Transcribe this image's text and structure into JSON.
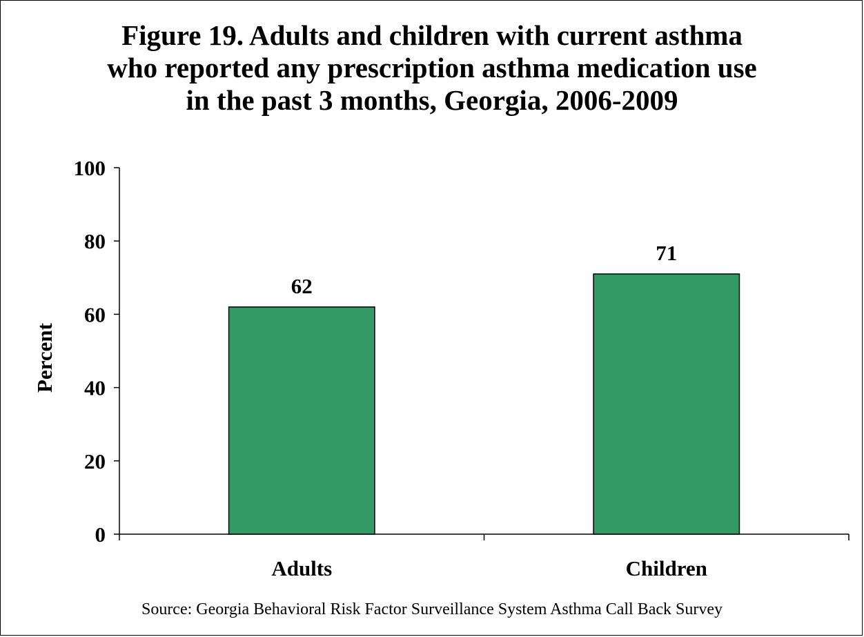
{
  "title_lines": [
    "Figure 19. Adults and children with current asthma",
    "who reported any prescription asthma medication use",
    "in the past 3 months, Georgia, 2006-2009"
  ],
  "source": "Source: Georgia Behavioral Risk Factor Surveillance System Asthma Call Back Survey",
  "colors": {
    "bar_fill": "#339966",
    "bar_stroke": "#000000",
    "axis": "#000000"
  },
  "chart_data": {
    "type": "bar",
    "title": "Figure 19. Adults and children with current asthma who reported any prescription asthma medication use in the past 3 months, Georgia, 2006-2009",
    "xlabel": "",
    "ylabel": "Percent",
    "categories": [
      "Adults",
      "Children"
    ],
    "values": [
      62,
      71
    ],
    "data_labels": [
      "62",
      "71"
    ],
    "ylim": [
      0,
      100
    ],
    "yticks": [
      0,
      20,
      40,
      60,
      80,
      100
    ],
    "grid": false,
    "legend": "none"
  }
}
